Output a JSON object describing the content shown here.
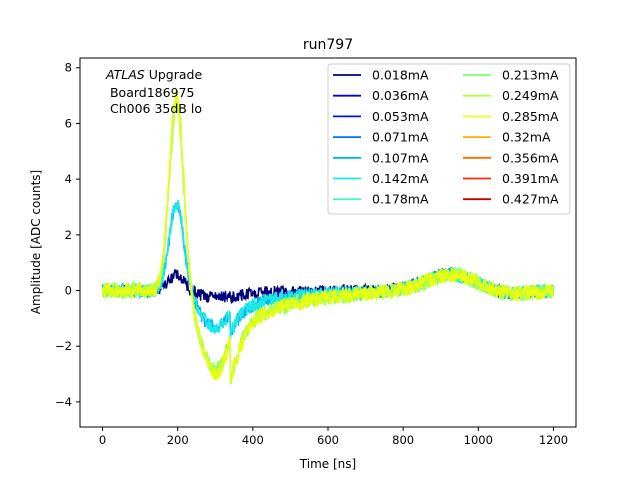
{
  "chart_data": {
    "type": "line",
    "title": "run797",
    "xlabel": "Time [ns]",
    "ylabel": "Amplitude [ADC counts]",
    "xlim": [
      -60,
      1260
    ],
    "ylim": [
      -4.9,
      8.35
    ],
    "xticks": [
      0,
      200,
      400,
      600,
      800,
      1000,
      1200
    ],
    "yticks": [
      -4,
      -2,
      0,
      2,
      4,
      6,
      8
    ],
    "grid": false,
    "legend": {
      "placement": "top-right",
      "columns": 2
    },
    "annotation": {
      "italic": "ATLAS",
      "suffix": " Upgrade",
      "line2": " Board186975",
      "line3": " Ch006 35dB lo"
    },
    "series": [
      {
        "name": "0.018mA",
        "color": "#00007f",
        "peak": 0.6
      },
      {
        "name": "0.036mA",
        "color": "#0000e0",
        "peak": 0.6
      },
      {
        "name": "0.053mA",
        "color": "#0010ff",
        "peak": 0.6
      },
      {
        "name": "0.071mA",
        "color": "#0070ff",
        "peak": 0.6
      },
      {
        "name": "0.107mA",
        "color": "#00b0f0",
        "peak": 3.2
      },
      {
        "name": "0.142mA",
        "color": "#1ae8e8",
        "peak": 3.2
      },
      {
        "name": "0.178mA",
        "color": "#48f8c0",
        "peak": 3.2
      },
      {
        "name": "0.213mA",
        "color": "#7cff7a",
        "peak": 6.8
      },
      {
        "name": "0.249mA",
        "color": "#b4ff44",
        "peak": 6.8
      },
      {
        "name": "0.285mA",
        "color": "#e8ff10",
        "peak": 7.2
      },
      {
        "name": "0.32mA",
        "color": "#ffb000",
        "peak": 7.2
      },
      {
        "name": "0.356mA",
        "color": "#ff6a00",
        "peak": 7.2
      },
      {
        "name": "0.391mA",
        "color": "#ff2800",
        "peak": 7.2
      },
      {
        "name": "0.427mA",
        "color": "#c80000",
        "peak": 7.2
      }
    ],
    "drawn_series": [
      "0.018mA",
      "0.107mA",
      "0.142mA",
      "0.213mA",
      "0.249mA",
      "0.285mA"
    ]
  }
}
